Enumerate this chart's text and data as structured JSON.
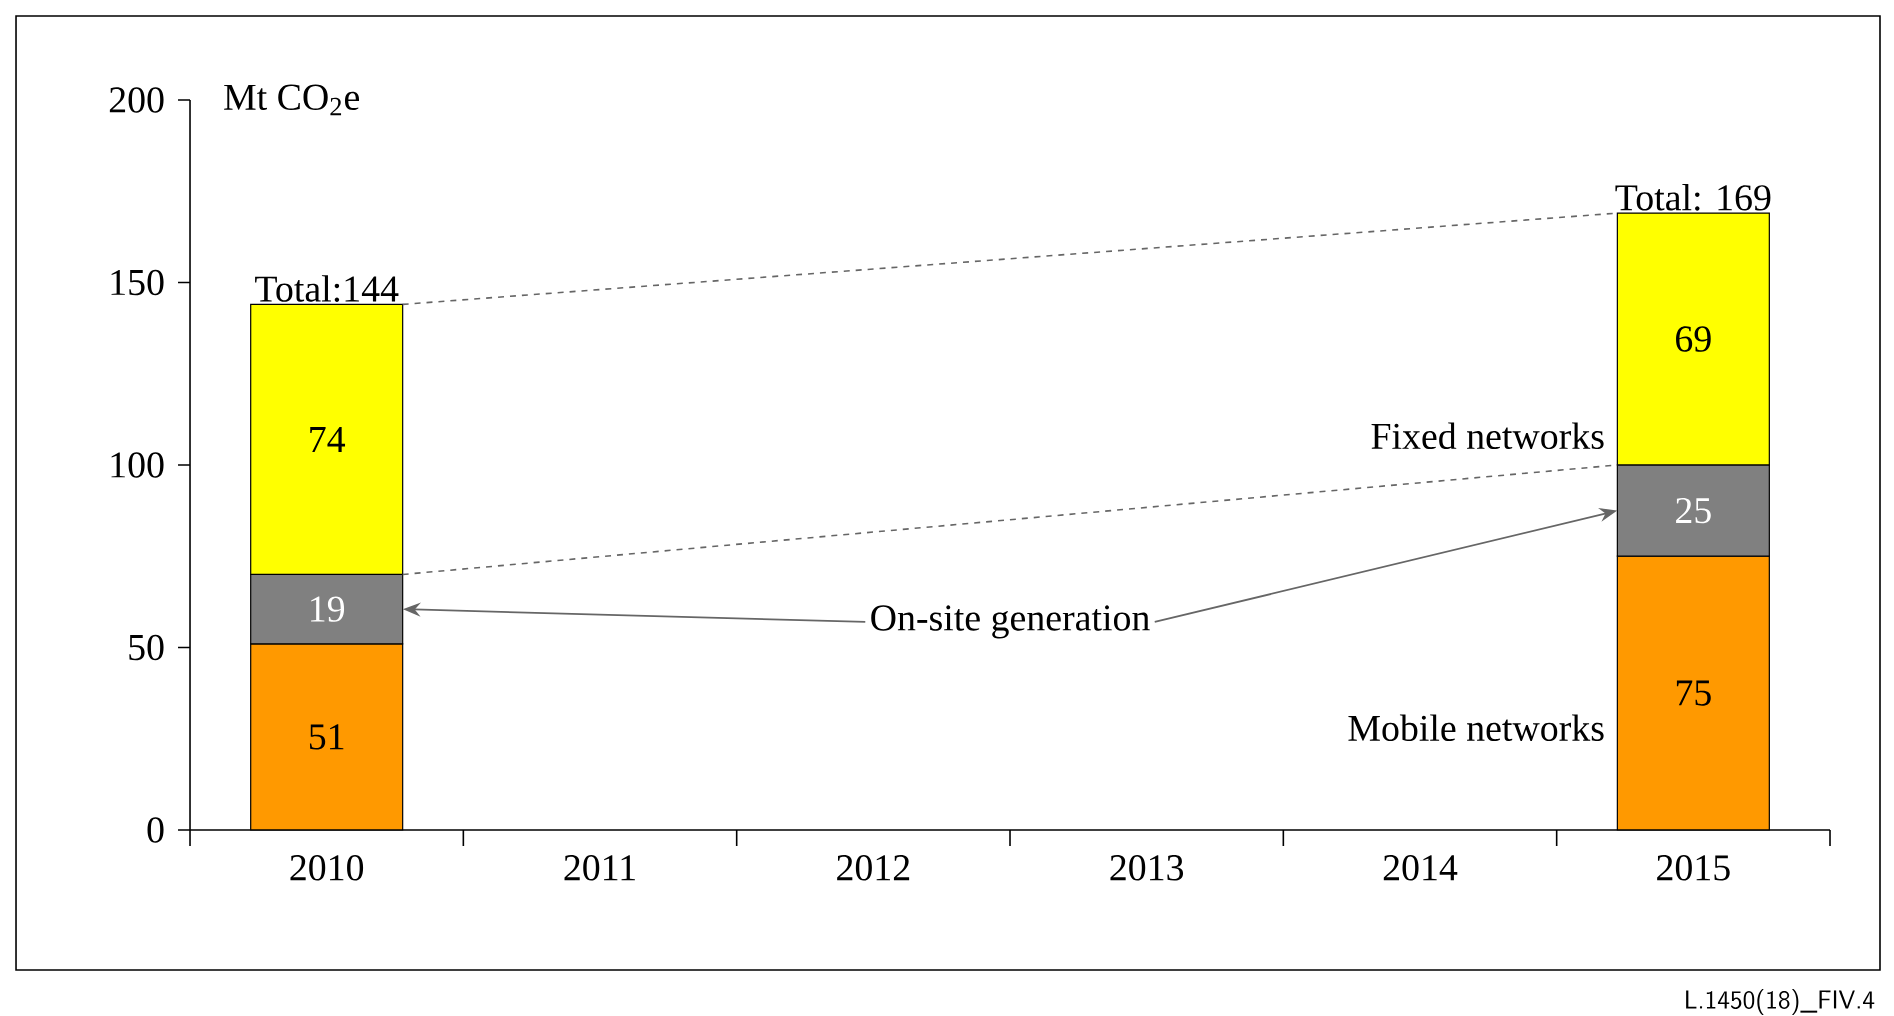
{
  "chart_data": {
    "type": "bar",
    "stacked": true,
    "categories": [
      "2010",
      "2011",
      "2012",
      "2013",
      "2014",
      "2015"
    ],
    "series": [
      {
        "name": "Mobile networks",
        "color": "#ff9900",
        "values": [
          51,
          null,
          null,
          null,
          null,
          75
        ]
      },
      {
        "name": "On-site generation",
        "color": "#808080",
        "values": [
          19,
          null,
          null,
          null,
          null,
          25
        ]
      },
      {
        "name": "Fixed networks",
        "color": "#ffff00",
        "values": [
          74,
          null,
          null,
          null,
          null,
          69
        ]
      }
    ],
    "data_labels": true,
    "totals": [
      "Total:144",
      null,
      null,
      null,
      null,
      "Total: 169"
    ],
    "ylim": [
      0,
      200
    ],
    "yticks": [
      0,
      50,
      100,
      150,
      200
    ],
    "ylabel": "Mt CO$_{2}$e",
    "annotations": [
      "L.1450(18)_FIV.4"
    ]
  }
}
